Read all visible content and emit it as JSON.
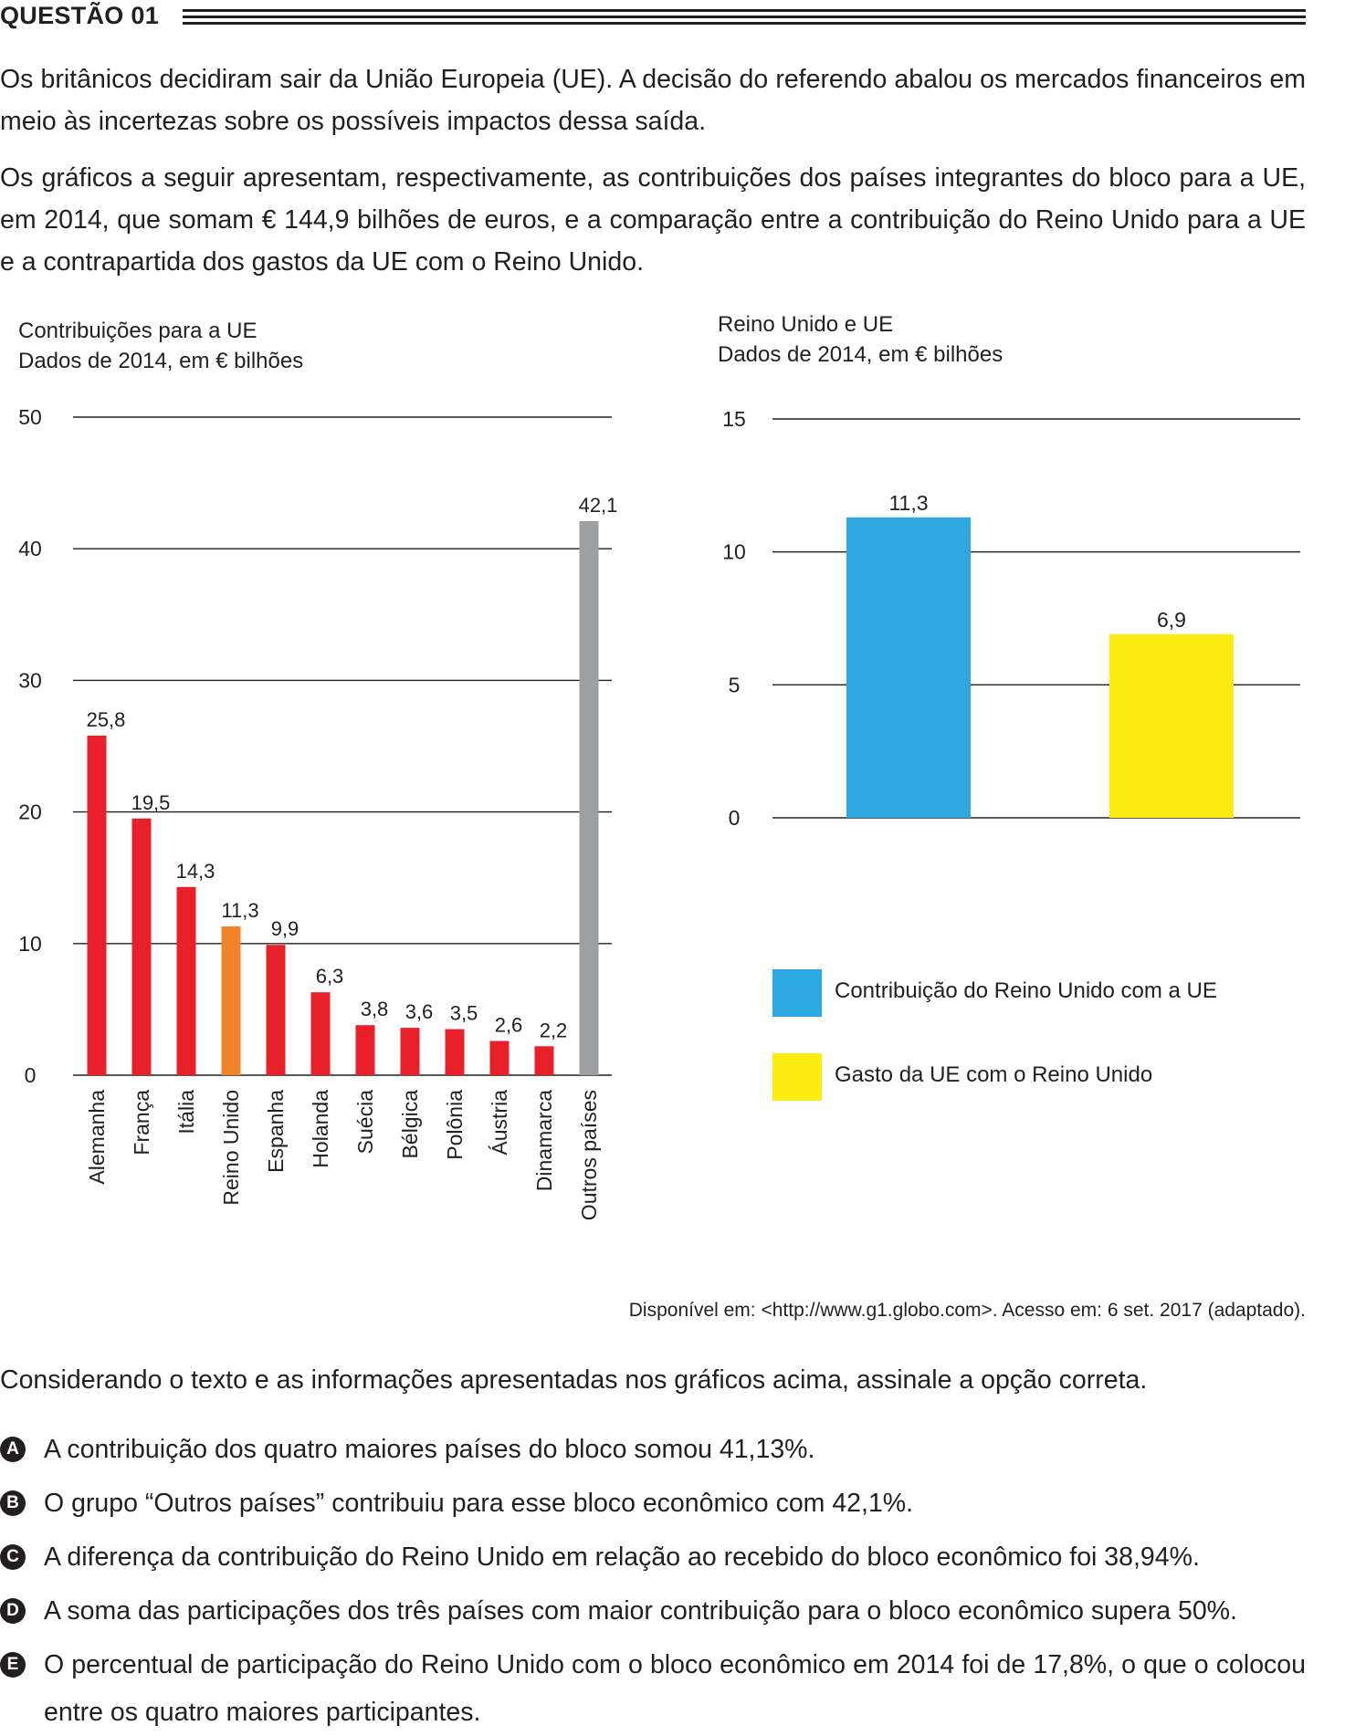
{
  "question": {
    "title": "QUESTÃO 01",
    "paragraph1": "Os britânicos decidiram sair da União Europeia (UE). A decisão do referendo abalou os mercados financeiros em meio às incertezas sobre os possíveis impactos dessa saída.",
    "paragraph2": "Os gráficos a seguir apresentam, respectivamente, as contribuições dos países integrantes do bloco para a UE, em 2014, que somam € 144,9 bilhões de euros, e a comparação entre a contribuição do Reino Unido para a UE e a contrapartida dos gastos da UE com o Reino Unido.",
    "source": "Disponível em: <http://www.g1.globo.com>. Acesso em: 6 set. 2017 (adaptado).",
    "prompt": "Considerando o texto e as informações apresentadas nos gráficos acima, assinale a opção correta.",
    "options": [
      {
        "letter": "A",
        "text": "A contribuição dos quatro maiores países do bloco somou 41,13%."
      },
      {
        "letter": "B",
        "text": "O grupo “Outros países” contribuiu para esse bloco econômico com 42,1%."
      },
      {
        "letter": "C",
        "text": "A diferença da contribuição do Reino Unido em relação ao recebido do bloco econômico foi 38,94%."
      },
      {
        "letter": "D",
        "text": "A soma das participações dos três países com maior contribuição para o bloco econômico supera 50%."
      },
      {
        "letter": "E",
        "text": "O percentual de participação do Reino Unido com o bloco econômico em 2014 foi de 17,8%, o que o colocou entre os quatro maiores participantes."
      }
    ]
  },
  "chart_data": [
    {
      "type": "bar",
      "title": "Contribuições para a UE",
      "subtitle": "Dados de 2014, em € bilhões",
      "categories": [
        "Alemanha",
        "França",
        "Itália",
        "Reino Unido",
        "Espanha",
        "Holanda",
        "Suécia",
        "Bélgica",
        "Polônia",
        "Áustria",
        "Dinamarca",
        "Outros países"
      ],
      "values": [
        25.8,
        19.5,
        14.3,
        11.3,
        9.9,
        6.3,
        3.8,
        3.6,
        3.5,
        2.6,
        2.2,
        42.1
      ],
      "value_labels": [
        "25,8",
        "19,5",
        "14,3",
        "11,3",
        "9,9",
        "6,3",
        "3,8",
        "3,6",
        "3,5",
        "2,6",
        "2,2",
        "42,1"
      ],
      "colors": [
        "#e8202a",
        "#e8202a",
        "#e8202a",
        "#f08228",
        "#e8202a",
        "#e8202a",
        "#e8202a",
        "#e8202a",
        "#e8202a",
        "#e8202a",
        "#e8202a",
        "#9d9fa2"
      ],
      "yticks": [
        0,
        10,
        20,
        30,
        40,
        50
      ],
      "ylim": [
        0,
        50
      ],
      "grid": true
    },
    {
      "type": "bar",
      "title": "Reino Unido e UE",
      "subtitle": "Dados de 2014, em € bilhões",
      "series": [
        {
          "name": "Contribuição do Reino Unido com a UE",
          "value": 11.3,
          "label": "11,3",
          "color": "#2ea8e0"
        },
        {
          "name": "Gasto da UE com o Reino Unido",
          "value": 6.9,
          "label": "6,9",
          "color": "#fcec0f"
        }
      ],
      "yticks": [
        0,
        5,
        10,
        15
      ],
      "ylim": [
        0,
        15
      ],
      "grid": true,
      "legend": "bottom"
    }
  ]
}
